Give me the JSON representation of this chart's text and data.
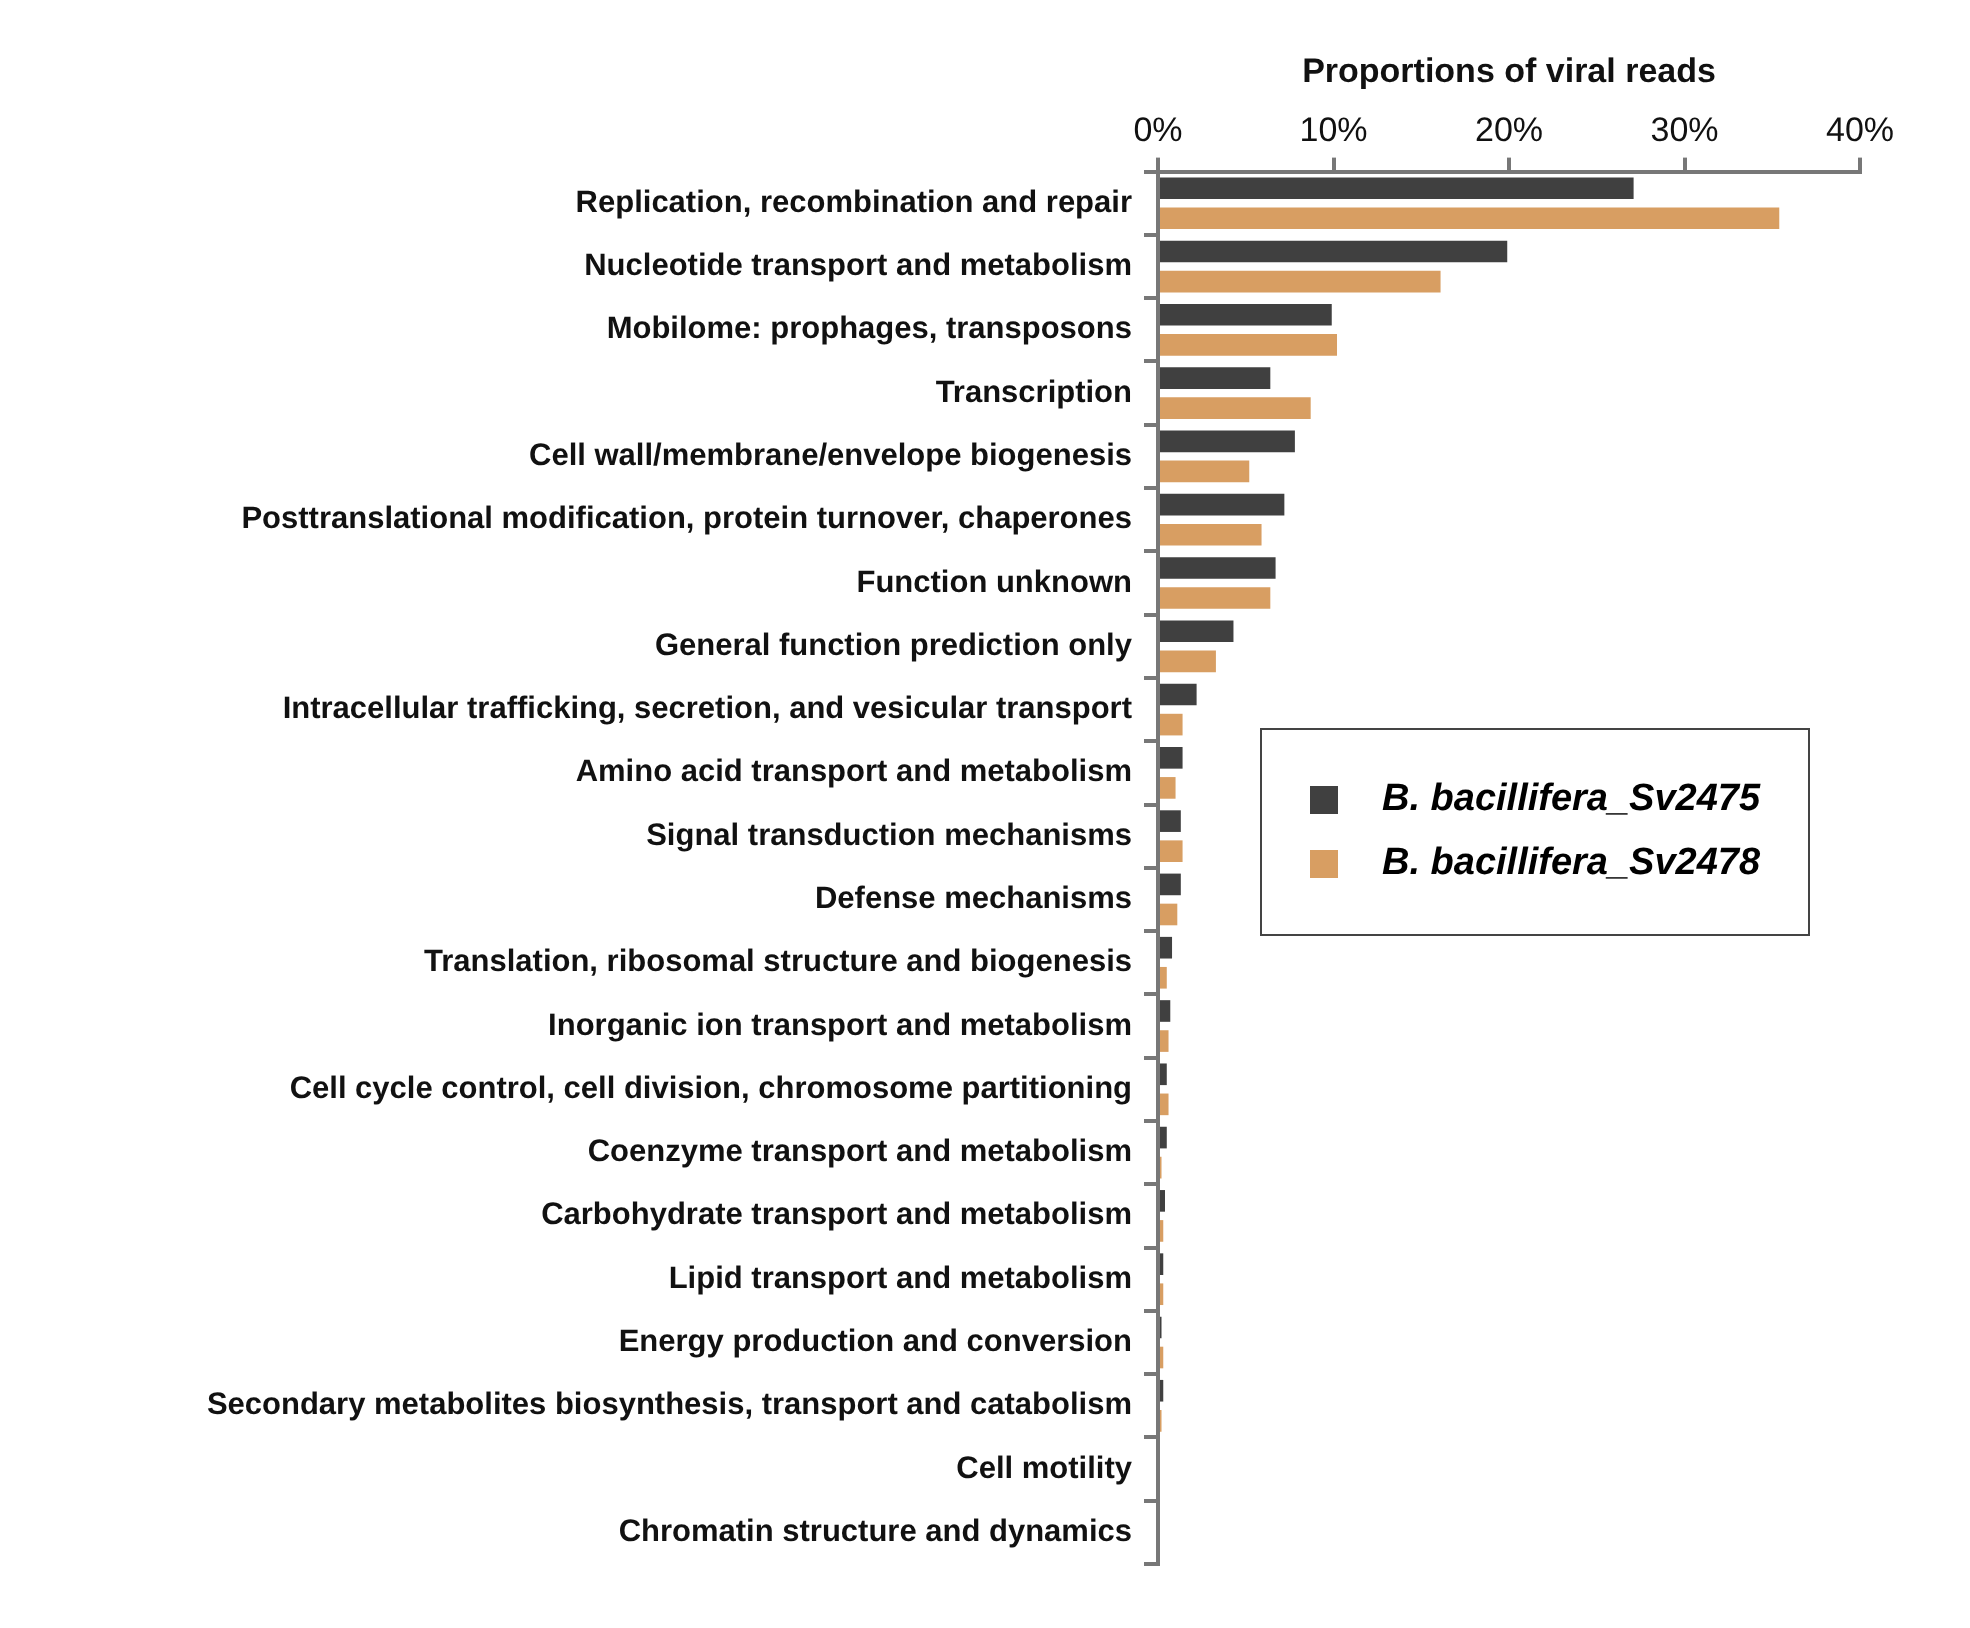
{
  "chart_data": {
    "type": "bar",
    "orientation": "horizontal",
    "xlabel": "Proportions of viral reads",
    "categories": [
      "Replication, recombination and repair",
      "Nucleotide transport and metabolism",
      "Mobilome: prophages, transposons",
      "Transcription",
      "Cell wall/membrane/envelope biogenesis",
      "Posttranslational modification, protein turnover, chaperones",
      "Function unknown",
      "General function prediction only",
      "Intracellular trafficking, secretion, and vesicular transport",
      "Amino acid transport and metabolism",
      "Signal transduction mechanisms",
      "Defense mechanisms",
      "Translation, ribosomal structure and biogenesis",
      "Inorganic ion transport and metabolism",
      "Cell cycle control, cell division, chromosome partitioning",
      "Coenzyme transport and metabolism",
      "Carbohydrate transport and metabolism",
      "Lipid transport and metabolism",
      "Energy production and conversion",
      "Secondary metabolites biosynthesis, transport and catabolism",
      "Cell motility",
      "Chromatin structure and dynamics"
    ],
    "series": [
      {
        "name": "B. bacillifera_Sv2475",
        "color": "#404040",
        "values": [
          27.1,
          19.9,
          9.9,
          6.4,
          7.8,
          7.2,
          6.7,
          4.3,
          2.2,
          1.4,
          1.3,
          1.3,
          0.8,
          0.7,
          0.5,
          0.5,
          0.4,
          0.3,
          0.2,
          0.3,
          0,
          0
        ]
      },
      {
        "name": "B. bacillifera_Sv2478",
        "color": "#d89e62",
        "values": [
          35.4,
          16.1,
          10.2,
          8.7,
          5.2,
          5.9,
          6.4,
          3.3,
          1.4,
          1.0,
          1.4,
          1.1,
          0.5,
          0.6,
          0.6,
          0.2,
          0.3,
          0.3,
          0.3,
          0.2,
          0,
          0
        ]
      }
    ],
    "xlim": [
      0,
      40
    ],
    "xticks": [
      {
        "value": 0,
        "label": "0%"
      },
      {
        "value": 10,
        "label": "10%"
      },
      {
        "value": 20,
        "label": "20%"
      },
      {
        "value": 30,
        "label": "30%"
      },
      {
        "value": 40,
        "label": "40%"
      }
    ],
    "grid": false,
    "legend": "right"
  }
}
